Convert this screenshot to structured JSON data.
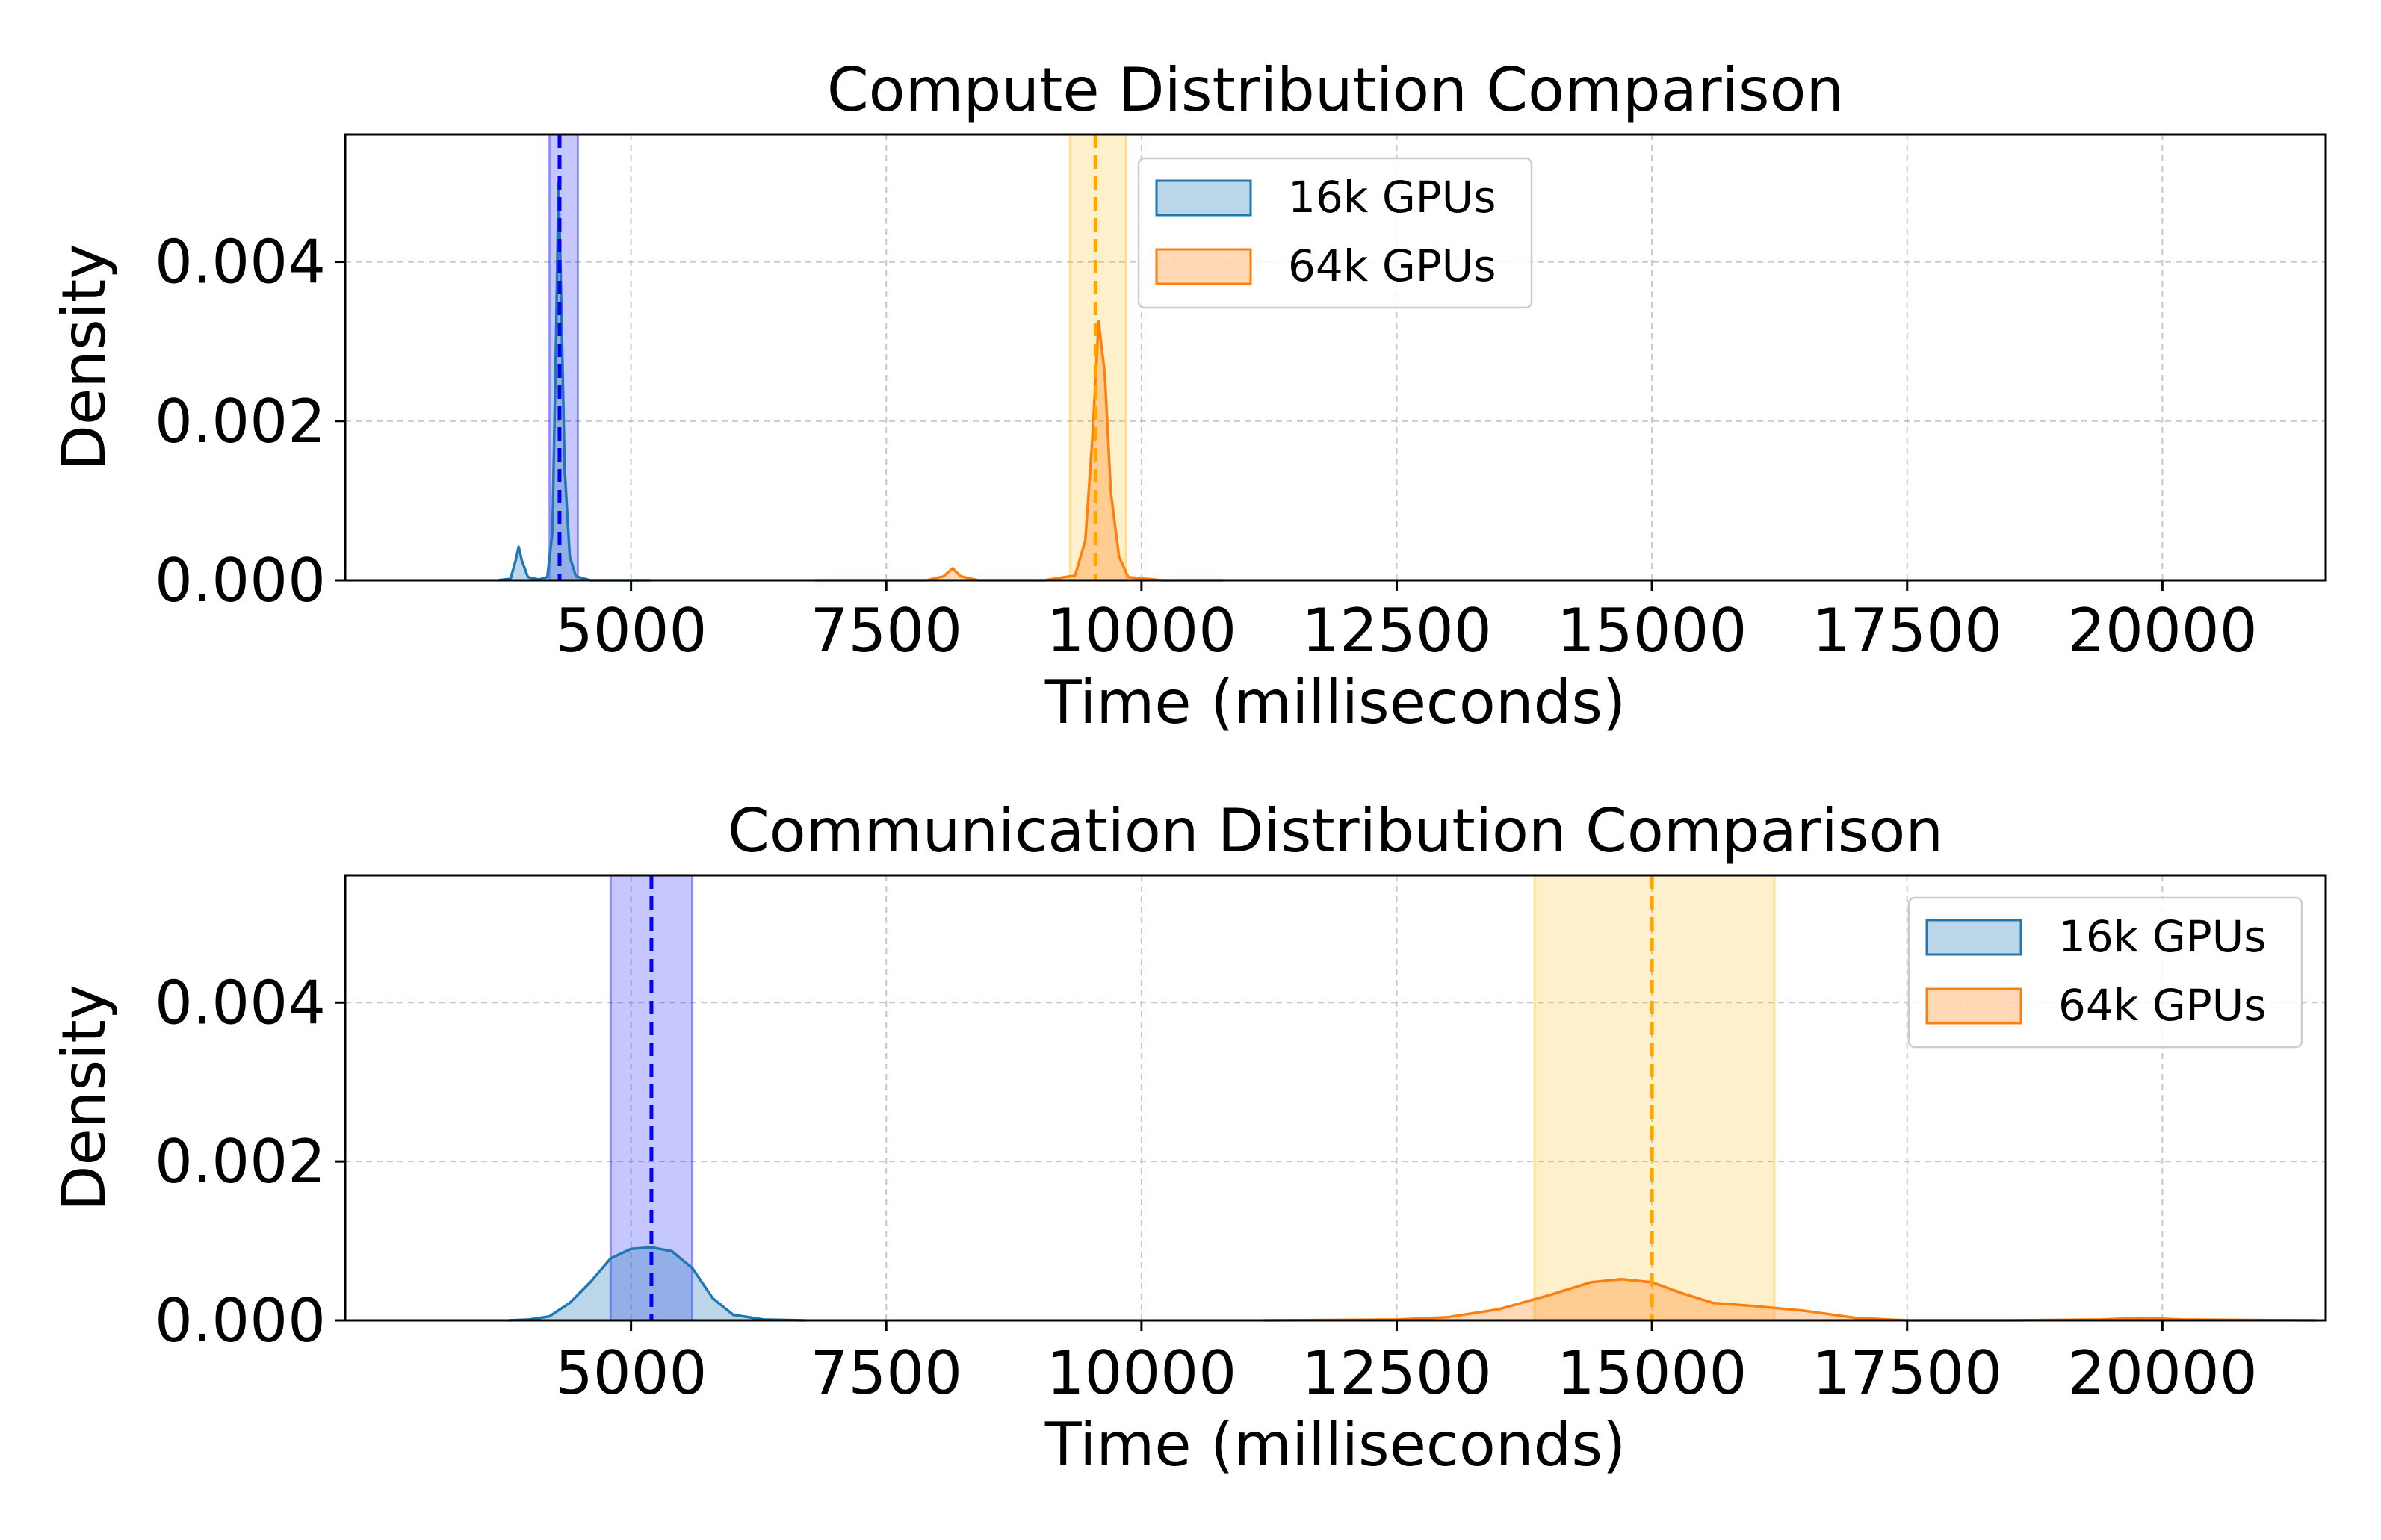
{
  "chart_data": [
    {
      "type": "area",
      "subtype": "kde-density",
      "title": "Compute Distribution Comparison",
      "xlabel": "Time (milliseconds)",
      "ylabel": "Density",
      "xlim": [
        2200,
        21600
      ],
      "ylim": [
        0,
        0.0056
      ],
      "xticks": [
        5000,
        7500,
        10000,
        12500,
        15000,
        17500,
        20000
      ],
      "yticks": [
        0,
        0.002,
        0.004
      ],
      "ytick_labels": [
        "0.000",
        "0.002",
        "0.004"
      ],
      "grid": true,
      "legend_position": "upper-center",
      "series": [
        {
          "name": "16k GPUs",
          "color": "#1f77b4",
          "points": [
            [
              3700,
              0
            ],
            [
              3820,
              2e-05
            ],
            [
              3870,
              0.00025
            ],
            [
              3900,
              0.00042
            ],
            [
              3930,
              0.00025
            ],
            [
              3990,
              4e-05
            ],
            [
              4100,
              1e-05
            ],
            [
              4180,
              4e-05
            ],
            [
              4230,
              0.0006
            ],
            [
              4265,
              0.003
            ],
            [
              4290,
              0.005
            ],
            [
              4310,
              0.0039
            ],
            [
              4350,
              0.0014
            ],
            [
              4400,
              0.0003
            ],
            [
              4460,
              5e-05
            ],
            [
              4600,
              0
            ],
            [
              5200,
              0
            ]
          ],
          "mean": 4300,
          "band": [
            4200,
            4480
          ]
        },
        {
          "name": "64k GPUs",
          "color": "#ff7f0e",
          "points": [
            [
              6800,
              0
            ],
            [
              7900,
              0
            ],
            [
              8060,
              5e-05
            ],
            [
              8150,
              0.00015
            ],
            [
              8230,
              5e-05
            ],
            [
              8400,
              0
            ],
            [
              9050,
              0
            ],
            [
              9350,
              6e-05
            ],
            [
              9450,
              0.0005
            ],
            [
              9520,
              0.0018
            ],
            [
              9580,
              0.00325
            ],
            [
              9640,
              0.0026
            ],
            [
              9700,
              0.0011
            ],
            [
              9780,
              0.0003
            ],
            [
              9870,
              4e-05
            ],
            [
              10200,
              0
            ],
            [
              10800,
              0
            ]
          ],
          "mean": 9550,
          "band": [
            9300,
            9850
          ]
        }
      ]
    },
    {
      "type": "area",
      "subtype": "kde-density",
      "title": "Communication Distribution Comparison",
      "xlabel": "Time (milliseconds)",
      "ylabel": "Density",
      "xlim": [
        2200,
        21600
      ],
      "ylim": [
        0,
        0.0056
      ],
      "xticks": [
        5000,
        7500,
        10000,
        12500,
        15000,
        17500,
        20000
      ],
      "yticks": [
        0,
        0.002,
        0.004
      ],
      "ytick_labels": [
        "0.000",
        "0.002",
        "0.004"
      ],
      "grid": true,
      "legend_position": "upper-right",
      "series": [
        {
          "name": "16k GPUs",
          "color": "#1f77b4",
          "points": [
            [
              3800,
              0
            ],
            [
              4000,
              1e-05
            ],
            [
              4200,
              5e-05
            ],
            [
              4400,
              0.00022
            ],
            [
              4600,
              0.00048
            ],
            [
              4800,
              0.00078
            ],
            [
              5000,
              0.0009
            ],
            [
              5200,
              0.00092
            ],
            [
              5400,
              0.00087
            ],
            [
              5600,
              0.00066
            ],
            [
              5800,
              0.00028
            ],
            [
              6000,
              7e-05
            ],
            [
              6300,
              1e-05
            ],
            [
              6700,
              0
            ]
          ],
          "mean": 5200,
          "band": [
            4800,
            5600
          ]
        },
        {
          "name": "64k GPUs",
          "color": "#ff7f0e",
          "points": [
            [
              11200,
              0
            ],
            [
              12500,
              1e-05
            ],
            [
              13000,
              4e-05
            ],
            [
              13500,
              0.00014
            ],
            [
              14000,
              0.00032
            ],
            [
              14400,
              0.00048
            ],
            [
              14700,
              0.00052
            ],
            [
              15000,
              0.00048
            ],
            [
              15300,
              0.00034
            ],
            [
              15600,
              0.00022
            ],
            [
              16000,
              0.00018
            ],
            [
              16500,
              0.00012
            ],
            [
              17000,
              3e-05
            ],
            [
              17500,
              0
            ],
            [
              18500,
              0
            ],
            [
              19400,
              1e-05
            ],
            [
              19800,
              3e-05
            ],
            [
              20200,
              1e-05
            ],
            [
              21500,
              0
            ]
          ],
          "mean": 15000,
          "band": [
            13850,
            16200
          ]
        }
      ]
    }
  ]
}
